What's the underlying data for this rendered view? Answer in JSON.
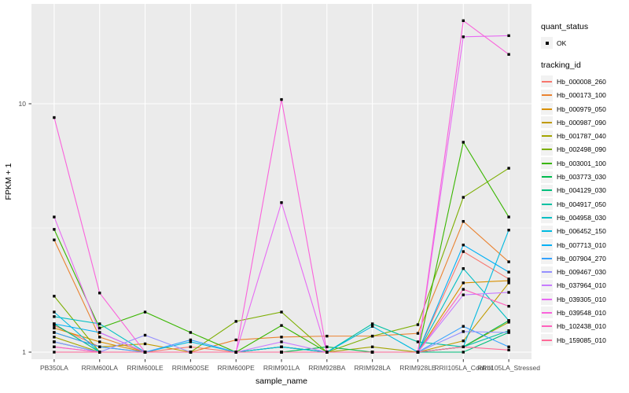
{
  "figure": {
    "kind": "ggplot2 line plot",
    "panel_bg": "#EBEBEB",
    "grid_color": "#FFFFFF",
    "outer_bg": "#FFFFFF",
    "axis_text_color": "#4D4D4D",
    "axis_title_color": "#000000",
    "tick_color": "#333333",
    "point_color": "#000000",
    "legend_key_bg": "#F2F2F2"
  },
  "chart_data": {
    "type": "line",
    "title": "",
    "xlabel": "sample_name",
    "ylabel": "FPKM + 1",
    "y_scale": "log10",
    "y_tick_labels": [
      "1",
      "10"
    ],
    "y_tick_values": [
      1,
      10
    ],
    "y_minor_values": [
      3.162
    ],
    "ylim": [
      1,
      25
    ],
    "grid": true,
    "legend_position": "right",
    "marker": "black-square-point",
    "categories": [
      "PB350LA",
      "RRIM600LA",
      "RRIM600LE",
      "RRIM600SE",
      "RRIM600PE",
      "RRIM901LA",
      "RRIM928BA",
      "RRIM928LA",
      "RRIM928LE",
      "RRII105LA_Control",
      "RRII105LA_Stressed"
    ],
    "series": [
      {
        "name": "Hb_000008_260",
        "color": "#F8766D",
        "values": [
          1.28,
          1.05,
          1.0,
          1.05,
          1.0,
          1.05,
          1.0,
          1.0,
          1.0,
          2.54,
          1.97
        ]
      },
      {
        "name": "Hb_000173_100",
        "color": "#EA8331",
        "values": [
          2.83,
          1.15,
          1.0,
          1.0,
          1.12,
          1.15,
          1.16,
          1.16,
          1.19,
          3.36,
          2.31
        ]
      },
      {
        "name": "Hb_000979_050",
        "color": "#D89000",
        "values": [
          1.25,
          1.1,
          1.0,
          1.0,
          1.0,
          1.0,
          1.0,
          1.0,
          1.0,
          1.9,
          1.94
        ]
      },
      {
        "name": "Hb_000987_090",
        "color": "#C09B00",
        "values": [
          1.2,
          1.05,
          1.08,
          1.0,
          1.0,
          1.05,
          1.0,
          1.0,
          1.0,
          1.11,
          1.9
        ]
      },
      {
        "name": "Hb_001787_040",
        "color": "#A3A500",
        "values": [
          1.15,
          1.0,
          1.0,
          1.0,
          1.0,
          1.0,
          1.0,
          1.05,
          1.0,
          1.05,
          1.32
        ]
      },
      {
        "name": "Hb_002498_090",
        "color": "#7CAE00",
        "values": [
          1.68,
          1.0,
          1.0,
          1.0,
          1.33,
          1.45,
          1.0,
          1.16,
          1.29,
          4.2,
          5.5
        ]
      },
      {
        "name": "Hb_003001_100",
        "color": "#39B600",
        "values": [
          3.12,
          1.25,
          1.45,
          1.2,
          1.0,
          1.28,
          1.0,
          1.0,
          1.0,
          7.0,
          3.5
        ]
      },
      {
        "name": "Hb_003773_030",
        "color": "#00BB4E",
        "values": [
          1.1,
          1.0,
          1.0,
          1.0,
          1.0,
          1.0,
          1.05,
          1.0,
          1.0,
          1.05,
          1.34
        ]
      },
      {
        "name": "Hb_004129_030",
        "color": "#00BF7D",
        "values": [
          1.3,
          1.0,
          1.0,
          1.0,
          1.0,
          1.05,
          1.0,
          1.0,
          1.0,
          1.0,
          1.2
        ]
      },
      {
        "name": "Hb_004917_050",
        "color": "#00C1A3",
        "values": [
          1.1,
          1.0,
          1.0,
          1.0,
          1.0,
          1.0,
          1.0,
          1.3,
          1.1,
          1.05,
          1.22
        ]
      },
      {
        "name": "Hb_004958_030",
        "color": "#00BFC4",
        "values": [
          1.39,
          1.3,
          1.0,
          1.0,
          1.0,
          1.0,
          1.0,
          1.0,
          1.0,
          2.17,
          1.34
        ]
      },
      {
        "name": "Hb_006452_150",
        "color": "#00BAE0",
        "values": [
          1.45,
          1.0,
          1.0,
          1.1,
          1.0,
          1.05,
          1.0,
          1.27,
          1.0,
          1.05,
          3.1
        ]
      },
      {
        "name": "Hb_007713_010",
        "color": "#00B0F6",
        "values": [
          1.3,
          1.2,
          1.0,
          1.0,
          1.0,
          1.0,
          1.0,
          1.0,
          1.0,
          2.7,
          2.1
        ]
      },
      {
        "name": "Hb_007904_270",
        "color": "#35A2FF",
        "values": [
          1.2,
          1.05,
          1.0,
          1.12,
          1.0,
          1.0,
          1.0,
          1.0,
          1.0,
          1.27,
          1.05
        ]
      },
      {
        "name": "Hb_009467_030",
        "color": "#9590FF",
        "values": [
          1.1,
          1.0,
          1.17,
          1.0,
          1.0,
          1.0,
          1.0,
          1.0,
          1.0,
          1.21,
          1.2
        ]
      },
      {
        "name": "Hb_037964_010",
        "color": "#C77CFF",
        "values": [
          1.05,
          1.0,
          1.0,
          1.0,
          1.0,
          1.1,
          1.0,
          1.0,
          1.0,
          1.7,
          1.74
        ]
      },
      {
        "name": "Hb_039305_010",
        "color": "#E76BF3",
        "values": [
          3.5,
          1.2,
          1.0,
          1.0,
          1.0,
          4.0,
          1.0,
          1.0,
          1.0,
          18.6,
          18.8
        ]
      },
      {
        "name": "Hb_039548_010",
        "color": "#FA62DB",
        "values": [
          8.8,
          1.73,
          1.0,
          1.0,
          1.0,
          10.4,
          1.0,
          1.0,
          1.0,
          21.6,
          15.8
        ]
      },
      {
        "name": "Hb_102438_010",
        "color": "#FF62BC",
        "values": [
          1.05,
          1.0,
          1.0,
          1.0,
          1.0,
          1.0,
          1.0,
          1.0,
          1.0,
          1.79,
          1.53
        ]
      },
      {
        "name": "Hb_159085_010",
        "color": "#FF6A98",
        "values": [
          1.0,
          1.0,
          1.0,
          1.0,
          1.0,
          1.0,
          1.0,
          1.0,
          1.0,
          1.05,
          1.02
        ]
      }
    ]
  },
  "legend": {
    "quant_status": {
      "title": "quant_status",
      "items": [
        {
          "label": "OK",
          "symbol": "black-point"
        }
      ]
    },
    "tracking_id": {
      "title": "tracking_id"
    }
  }
}
